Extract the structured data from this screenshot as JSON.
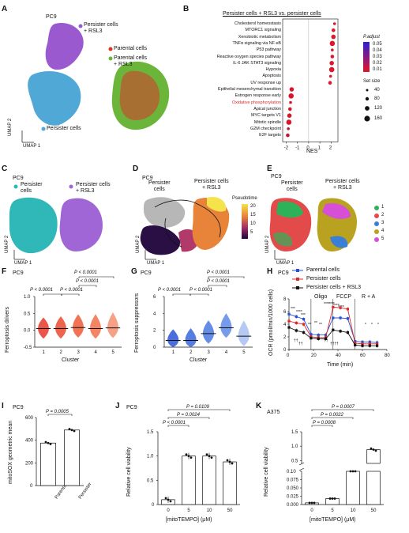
{
  "panels": {
    "A": {
      "letter": "A",
      "cell_line": "PC9",
      "labels": {
        "persister_rsl3": "Persister cells\n+ RSL3",
        "persister": "Persister cells",
        "parental": "Parental cells",
        "parental_rsl3": "Parental cells\n+ RSL3",
        "umap2": "UMAP 2",
        "umap1": "UMAP 1"
      },
      "colors": {
        "persister": "#4fa8d6",
        "persister_rsl3": "#9b59d0",
        "parental": "#d9342b",
        "parental_rsl3": "#6bb53a"
      }
    },
    "B": {
      "letter": "B",
      "title": "Persister cells + RSL3 vs. persister cells",
      "xlabel": "NES",
      "legend_padj_title": "P.adjust",
      "legend_size_title": "Set size",
      "chart_data": {
        "type": "scatter",
        "categories": [
          "Cholesterol homeostasis",
          "MTORC1 signaling",
          "Xenobiotic metabolism",
          "TNFα signaling via NF-κB",
          "P53 pathway",
          "Reactive oxygen species pathway",
          "IL-6 JAK STAT3 signaling",
          "Hypoxia",
          "Apoptosis",
          "UV response up",
          "Epithelial mesenchymal transition",
          "Estrogen response early",
          "Oxidative phosphorylation",
          "Apical junction",
          "MYC targets V1",
          "Mitotic spindle",
          "G2M checkpoint",
          "E2F targets"
        ],
        "nes": [
          2.3,
          2.2,
          2.2,
          2.1,
          2.1,
          2.1,
          2.05,
          2.05,
          1.95,
          1.9,
          -1.5,
          -1.55,
          -1.6,
          -1.65,
          -1.7,
          -1.75,
          -1.8,
          -1.85
        ],
        "xticks": [
          "-2",
          "-1",
          "0",
          "1",
          "2"
        ],
        "xlim": [
          -2.3,
          2.6
        ],
        "padj_ticks": [
          "0.05",
          "0.04",
          "0.03",
          "0.02",
          "0.01"
        ],
        "size_ticks": [
          "40",
          "80",
          "120",
          "160"
        ],
        "highlight": "Oxidative phosphorylation"
      }
    },
    "C": {
      "letter": "C",
      "cell_line": "PC9",
      "legend": [
        "Persister\ncells",
        "Persister cells\n+ RSL3"
      ],
      "umap2": "UMAP 2",
      "umap1": "UMAP 1"
    },
    "D": {
      "letter": "D",
      "cell_line": "PC9",
      "labels": [
        "Persister\ncells",
        "Persister cells\n+ RSL3"
      ],
      "colorbar_title": "Pseudotime",
      "colorbar_ticks": [
        "20",
        "15",
        "10",
        "5"
      ],
      "umap2": "UMAP 2",
      "umap1": "UMAP 1"
    },
    "E": {
      "letter": "E",
      "cell_line": "PC9",
      "labels": [
        "Persister\ncells",
        "Persister cells\n+ RSL3"
      ],
      "clusters": [
        "1",
        "2",
        "3",
        "4",
        "5"
      ],
      "cluster_colors": [
        "#2fb15a",
        "#e34b4b",
        "#3a7fd5",
        "#b8a21f",
        "#d64fd6"
      ],
      "umap2": "UMAP 2",
      "umap1": "UMAP 1"
    },
    "F": {
      "letter": "F",
      "cell_line": "PC9",
      "ylabel": "Ferroptosis drivers",
      "xlabel": "Cluster",
      "pvals": [
        "P < 0.0001",
        "P < 0.0001",
        "P < 0.0001",
        "P < 0.0001"
      ],
      "chart_data": {
        "type": "scatter",
        "categories": [
          "1",
          "2",
          "3",
          "4",
          "5"
        ],
        "medians": [
          0.05,
          0.05,
          0.08,
          0.05,
          0.07
        ],
        "ylim": [
          -0.5,
          1.0
        ],
        "yticks": [
          "1.0",
          "0.5",
          "0.0",
          "-0.5"
        ]
      }
    },
    "G": {
      "letter": "G",
      "cell_line": "PC9",
      "ylabel": "Ferroptosis suppressors",
      "xlabel": "Cluster",
      "pvals": [
        "P < 0.0001",
        "P < 0.0001",
        "P < 0.0001",
        "P < 0.0001"
      ],
      "chart_data": {
        "type": "scatter",
        "categories": [
          "1",
          "2",
          "3",
          "4",
          "5"
        ],
        "medians": [
          0.8,
          0.8,
          1.6,
          2.3,
          1.3
        ],
        "ylim": [
          0,
          6
        ],
        "yticks": [
          "6",
          "4",
          "2",
          "0"
        ]
      }
    },
    "H": {
      "letter": "H",
      "cell_line": "PC9",
      "ylabel": "OCR (pmol/min/1000 cells)",
      "xlabel": "Time (min)",
      "legend": [
        "Parental cells",
        "Persister cells",
        "Persister cells + RSL3"
      ],
      "injections": [
        "Oligo",
        "FCCP",
        "R + A"
      ],
      "chart_data": {
        "type": "line",
        "x": [
          0,
          6,
          12,
          18,
          24,
          30,
          36,
          42,
          48,
          54,
          60,
          66,
          72
        ],
        "series": [
          {
            "name": "Parental cells",
            "color": "#2a4fd6",
            "values": [
              5.6,
              5.2,
              4.8,
              2.4,
              2.3,
              2.3,
              5.0,
              5.0,
              4.9,
              1.3,
              1.2,
              1.2,
              1.1
            ]
          },
          {
            "name": "Persister cells",
            "color": "#d92b2b",
            "values": [
              4.5,
              4.2,
              4.0,
              2.0,
              1.9,
              1.9,
              6.7,
              6.6,
              6.4,
              1.0,
              0.9,
              0.9,
              0.9
            ]
          },
          {
            "name": "Persister cells + RSL3",
            "color": "#111111",
            "values": [
              3.5,
              3.0,
              2.7,
              1.8,
              1.7,
              1.7,
              3.1,
              2.9,
              2.7,
              0.7,
              0.6,
              0.6,
              0.6
            ]
          }
        ],
        "xticks": [
          "0",
          "20",
          "40",
          "60",
          "80"
        ],
        "yticks": [
          "8",
          "6",
          "4",
          "2",
          "0"
        ],
        "xlim": [
          0,
          80
        ],
        "ylim": [
          0,
          8
        ]
      },
      "sig_marks": [
        "***",
        "****",
        "***",
        "**",
        "**",
        "**",
        "****",
        "****",
        "****",
        "****",
        "*",
        "*",
        "*",
        "††",
        "††",
        "††",
        "†††",
        "†"
      ]
    },
    "I": {
      "letter": "I",
      "cell_line": "PC9",
      "ylabel": "mitoSOX geometric mean",
      "pval": "P = 0.0005",
      "chart_data": {
        "type": "bar",
        "categories": [
          "Parental",
          "Persister"
        ],
        "values": [
          375,
          490
        ],
        "ylim": [
          0,
          600
        ],
        "yticks": [
          "600",
          "400",
          "200",
          "0"
        ]
      }
    },
    "J": {
      "letter": "J",
      "cell_line": "PC9",
      "ylabel": "Relative cell viability",
      "xlabel": "[mitoTEMPO] (μM)",
      "pvals": [
        "P = 0.0109",
        "P = 0.0024",
        "P < 0.0001"
      ],
      "chart_data": {
        "type": "bar",
        "categories": [
          "0",
          "5",
          "10",
          "50"
        ],
        "values": [
          0.1,
          1.0,
          1.0,
          0.88
        ],
        "ylim": [
          0,
          1.5
        ],
        "yticks": [
          "1.5",
          "1.0",
          "0.5",
          "0"
        ]
      }
    },
    "K": {
      "letter": "K",
      "cell_line": "A375",
      "ylabel": "Relative cell viability",
      "xlabel": "[mitoTEMPO] (μM)",
      "pvals": [
        "P = 0.0007",
        "P = 0.0022",
        "P = 0.0008"
      ],
      "chart_data": {
        "type": "bar",
        "categories": [
          "0",
          "5",
          "10",
          "50"
        ],
        "values": [
          0.005,
          0.018,
          0.1,
          0.88
        ],
        "yticks": [
          "1.5",
          "1.0",
          "0.5",
          "0.10",
          "0.075",
          "0.050",
          "0.025",
          "0.000"
        ]
      }
    }
  }
}
